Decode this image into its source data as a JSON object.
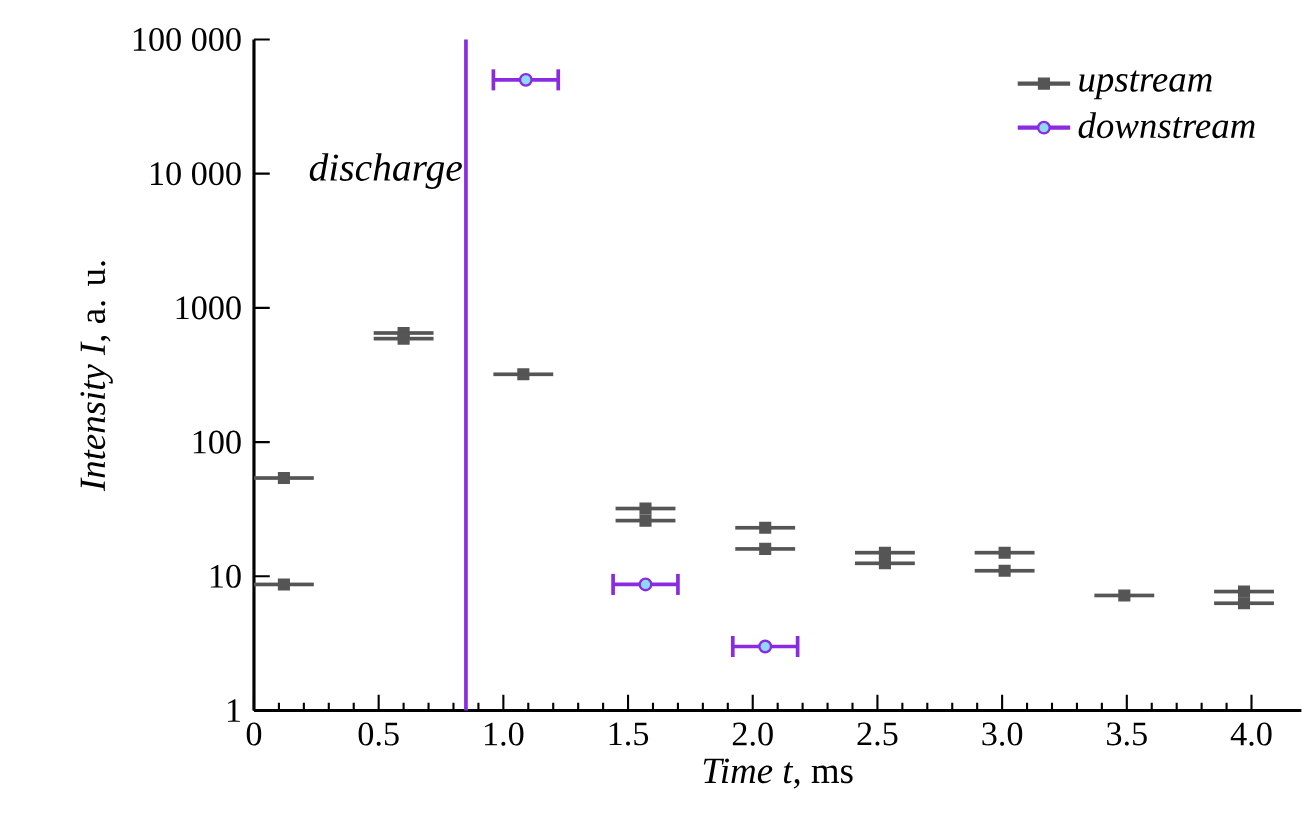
{
  "chart_data": {
    "type": "scatter",
    "xlabel": "*Time t*, ms",
    "ylabel": "*Intensity I*, a. u.",
    "log": "y",
    "legend": "top right",
    "xlim": [
      0,
      4.2
    ],
    "ylim": [
      1,
      100000
    ],
    "xticks": [
      0,
      0.5,
      {
        "value": 1,
        "label": "1.0"
      },
      1.5,
      {
        "value": 2,
        "label": "2.0"
      },
      2.5,
      {
        "value": 3,
        "label": "3.0"
      },
      3.5,
      {
        "value": 4,
        "label": "4.0"
      }
    ],
    "yticks": [
      1,
      10,
      100,
      1000,
      {
        "value": 10000,
        "label": "10 000"
      },
      {
        "value": 100000,
        "label": "100 000"
      }
    ],
    "ref_lines": [
      {
        "axis": "x",
        "value": 0.85,
        "label": "discharge",
        "color": "#8a2be2"
      }
    ],
    "series": [
      {
        "name": "upstream",
        "color": "#555555",
        "marker": "square",
        "x": [
          0.12,
          0.12,
          0.6,
          0.6,
          1.08,
          1.57,
          1.57,
          2.05,
          2.05,
          2.53,
          2.53,
          3.01,
          3.01,
          3.49,
          3.97,
          3.97
        ],
        "values": [
          54,
          8.7,
          650,
          590,
          320,
          32,
          26,
          23,
          16,
          15,
          12.5,
          15,
          11,
          7.2,
          7.7,
          6.3
        ],
        "xerrors": [
          0.12,
          0.12,
          0.12,
          0.12,
          0.12,
          0.12,
          0.12,
          0.12,
          0.12,
          0.12,
          0.12,
          0.12,
          0.12,
          0.12,
          0.12,
          0.12
        ]
      },
      {
        "name": "downstream",
        "color": "#8a2be2",
        "marker": "circle",
        "x": [
          1.09,
          1.57,
          2.05
        ],
        "values": [
          50000,
          8.7,
          3
        ],
        "xerrors": [
          0.13,
          0.13,
          0.13
        ]
      }
    ]
  }
}
